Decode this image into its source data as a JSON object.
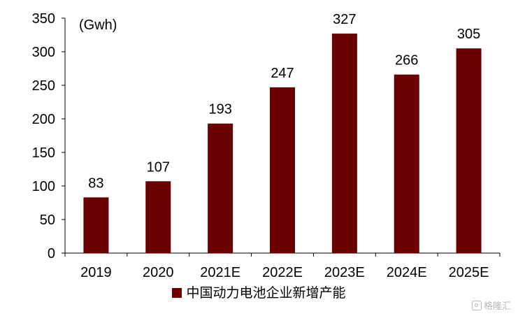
{
  "chart_data": {
    "type": "bar",
    "title": "",
    "unit_label": "(Gwh)",
    "xlabel": "",
    "ylabel": "",
    "categories": [
      "2019",
      "2020",
      "2021E",
      "2022E",
      "2023E",
      "2024E",
      "2025E"
    ],
    "series": [
      {
        "name": "中国动力电池企业新增产能",
        "values": [
          83,
          107,
          193,
          247,
          327,
          266,
          305
        ]
      }
    ],
    "data_labels": [
      "83",
      "107",
      "193",
      "247",
      "327",
      "266",
      "305"
    ],
    "ylim": [
      0,
      350
    ],
    "yticks": [
      0,
      50,
      100,
      150,
      200,
      250,
      300,
      350
    ],
    "grid": false,
    "legend_position": "bottom",
    "bar_color": "#6b0000"
  },
  "watermark": {
    "text": "格隆汇"
  }
}
